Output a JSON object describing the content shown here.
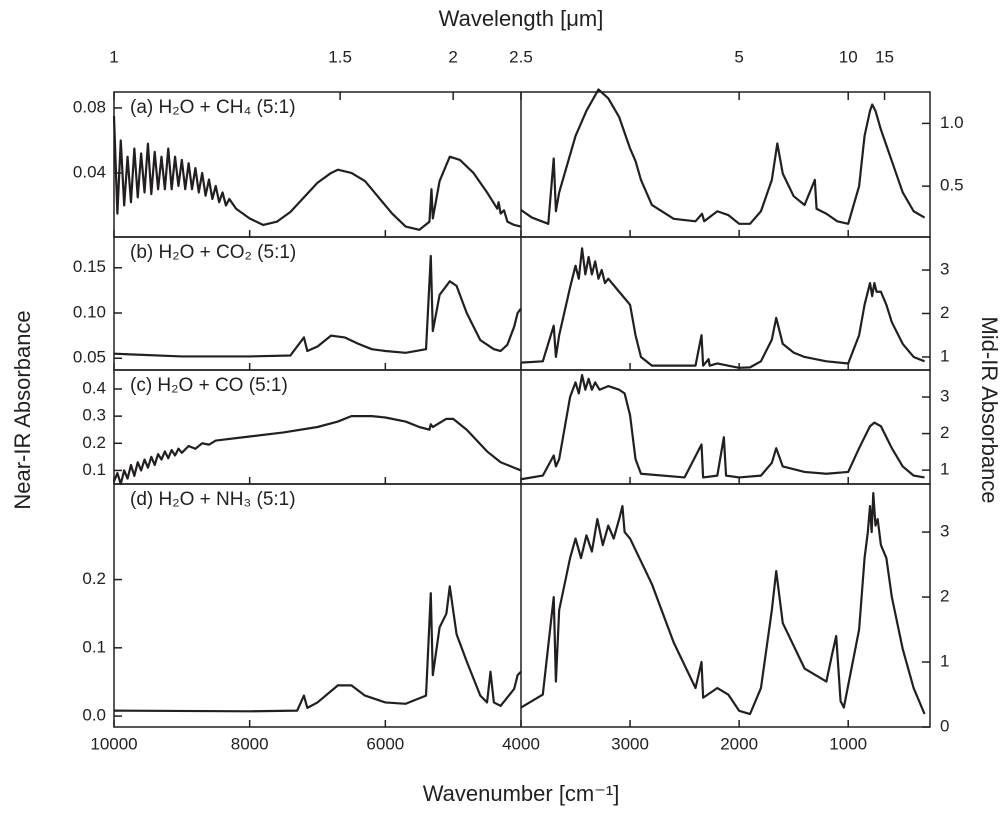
{
  "chart_data": {
    "type": "line",
    "top_x_label": "Wavelength [μm]",
    "x_label": "Wavenumber [cm⁻¹]",
    "left_y_label": "Near-IR Absorbance",
    "right_y_label": "Mid-IR Absorbance",
    "color": "#231f20",
    "near_xlim": [
      10000,
      4000
    ],
    "near_xticks": [
      10000,
      8000,
      6000,
      4000
    ],
    "mid_xlim": [
      4000,
      250
    ],
    "mid_xticks": [
      3000,
      2000,
      1000
    ],
    "top_xticks": [
      1,
      1.5,
      2,
      2.5,
      5,
      10,
      15
    ],
    "panels": [
      {
        "label": "(a) H₂O + CH₄ (5:1)",
        "near": {
          "ylim": [
            0.0006,
            0.0898
          ],
          "yticks": [
            0.04,
            0.08
          ],
          "x": [
            10000,
            9950,
            9900,
            9850,
            9800,
            9750,
            9700,
            9650,
            9600,
            9550,
            9500,
            9450,
            9400,
            9350,
            9300,
            9250,
            9200,
            9150,
            9100,
            9050,
            9000,
            8950,
            8900,
            8850,
            8800,
            8750,
            8700,
            8650,
            8600,
            8550,
            8500,
            8450,
            8400,
            8350,
            8300,
            8200,
            8000,
            7800,
            7600,
            7400,
            7200,
            7000,
            6800,
            6700,
            6500,
            6300,
            6100,
            5900,
            5700,
            5500,
            5350,
            5320,
            5300,
            5200,
            5050,
            4900,
            4700,
            4500,
            4350,
            4330,
            4300,
            4250,
            4200,
            4100,
            4000
          ],
          "values": [
            0.075,
            0.015,
            0.06,
            0.02,
            0.05,
            0.022,
            0.055,
            0.025,
            0.052,
            0.028,
            0.058,
            0.027,
            0.053,
            0.03,
            0.05,
            0.03,
            0.055,
            0.03,
            0.05,
            0.032,
            0.048,
            0.03,
            0.046,
            0.03,
            0.043,
            0.028,
            0.04,
            0.026,
            0.036,
            0.024,
            0.032,
            0.022,
            0.028,
            0.02,
            0.024,
            0.018,
            0.012,
            0.008,
            0.01,
            0.016,
            0.025,
            0.034,
            0.04,
            0.042,
            0.04,
            0.035,
            0.025,
            0.015,
            0.007,
            0.005,
            0.01,
            0.03,
            0.012,
            0.035,
            0.05,
            0.048,
            0.04,
            0.028,
            0.018,
            0.022,
            0.015,
            0.017,
            0.01,
            0.008,
            0.007
          ]
        },
        "mid": {
          "axis": "y2",
          "y2lim": [
            0.095,
            1.25
          ],
          "y2ticks": [
            {
              "value": 0.5,
              "label": "0.5"
            },
            {
              "value": 1,
              "label": "1.0"
            }
          ],
          "x": [
            4000,
            3900,
            3750,
            3700,
            3680,
            3650,
            3500,
            3400,
            3290,
            3200,
            3100,
            3000,
            2950,
            2900,
            2800,
            2600,
            2400,
            2340,
            2320,
            2200,
            2100,
            2000,
            1900,
            1800,
            1700,
            1650,
            1600,
            1500,
            1400,
            1306,
            1290,
            1200,
            1100,
            1000,
            900,
            850,
            800,
            780,
            750,
            700,
            600,
            500,
            400,
            300
          ],
          "values": [
            0.31,
            0.25,
            0.2,
            0.72,
            0.3,
            0.45,
            0.9,
            1.1,
            1.27,
            1.2,
            1.05,
            0.8,
            0.7,
            0.55,
            0.35,
            0.24,
            0.22,
            0.28,
            0.22,
            0.3,
            0.27,
            0.2,
            0.2,
            0.3,
            0.55,
            0.84,
            0.6,
            0.42,
            0.35,
            0.55,
            0.32,
            0.28,
            0.22,
            0.2,
            0.5,
            0.9,
            1.1,
            1.15,
            1.1,
            0.95,
            0.7,
            0.45,
            0.3,
            0.25
          ]
        }
      },
      {
        "label": "(b) H₂O + CO₂ (5:1)",
        "near": {
          "ylim": [
            0.037,
            0.184
          ],
          "yticks": [
            0.05,
            {
              "value": 0.1,
              "label": "0.10"
            },
            0.15
          ],
          "x": [
            10000,
            9000,
            8000,
            7400,
            7200,
            7150,
            7000,
            6800,
            6600,
            6400,
            6200,
            6000,
            5700,
            5400,
            5330,
            5300,
            5200,
            5050,
            4950,
            4800,
            4600,
            4400,
            4300,
            4200,
            4100,
            4050,
            4000
          ],
          "values": [
            0.055,
            0.052,
            0.052,
            0.053,
            0.073,
            0.058,
            0.063,
            0.075,
            0.073,
            0.066,
            0.06,
            0.058,
            0.056,
            0.06,
            0.163,
            0.08,
            0.12,
            0.135,
            0.13,
            0.1,
            0.07,
            0.06,
            0.058,
            0.065,
            0.085,
            0.1,
            0.105
          ]
        },
        "mid": {
          "axis": "y2",
          "y2lim": [
            0.7,
            3.76
          ],
          "y2ticks": [
            1,
            2,
            3
          ],
          "x": [
            4000,
            3800,
            3700,
            3680,
            3650,
            3550,
            3500,
            3470,
            3440,
            3410,
            3380,
            3350,
            3320,
            3290,
            3260,
            3230,
            3200,
            3100,
            3000,
            2950,
            2900,
            2800,
            2400,
            2345,
            2330,
            2280,
            2270,
            2200,
            2100,
            2000,
            1900,
            1800,
            1700,
            1660,
            1600,
            1500,
            1400,
            1200,
            1000,
            900,
            850,
            820,
            800,
            780,
            760,
            740,
            700,
            650,
            600,
            500,
            400,
            300
          ],
          "values": [
            0.87,
            0.9,
            1.72,
            1.0,
            1.5,
            2.6,
            3.1,
            2.8,
            3.5,
            2.9,
            3.3,
            2.9,
            3.2,
            2.8,
            3.0,
            2.7,
            2.8,
            2.5,
            2.2,
            1.5,
            1.0,
            0.8,
            0.8,
            1.5,
            0.8,
            0.95,
            0.8,
            0.85,
            0.8,
            0.75,
            0.76,
            0.9,
            1.4,
            1.9,
            1.3,
            1.1,
            1.0,
            0.9,
            0.85,
            1.5,
            2.2,
            2.5,
            2.7,
            2.4,
            2.7,
            2.5,
            2.5,
            2.2,
            1.8,
            1.3,
            1.0,
            0.9
          ]
        }
      },
      {
        "label": "(c) H₂O + CO (5:1)",
        "near": {
          "ylim": [
            0.05,
            0.47
          ],
          "yticks": [
            0.1,
            0.2,
            0.3,
            0.4
          ],
          "x": [
            10000,
            9950,
            9900,
            9850,
            9800,
            9750,
            9700,
            9650,
            9600,
            9550,
            9500,
            9450,
            9400,
            9350,
            9300,
            9250,
            9200,
            9150,
            9100,
            9050,
            9000,
            8900,
            8800,
            8700,
            8600,
            8500,
            8000,
            7500,
            7000,
            6700,
            6500,
            6200,
            6000,
            5700,
            5500,
            5350,
            5330,
            5300,
            5100,
            5000,
            4800,
            4500,
            4300,
            4100,
            4000
          ],
          "values": [
            0.06,
            0.09,
            0.05,
            0.1,
            0.07,
            0.12,
            0.08,
            0.13,
            0.1,
            0.14,
            0.11,
            0.15,
            0.12,
            0.16,
            0.14,
            0.17,
            0.145,
            0.175,
            0.155,
            0.18,
            0.165,
            0.19,
            0.18,
            0.2,
            0.195,
            0.21,
            0.225,
            0.24,
            0.26,
            0.28,
            0.3,
            0.3,
            0.295,
            0.28,
            0.26,
            0.25,
            0.27,
            0.26,
            0.29,
            0.29,
            0.25,
            0.17,
            0.13,
            0.11,
            0.1
          ]
        },
        "mid": {
          "axis": "y2",
          "y2lim": [
            0.62,
            3.74
          ],
          "y2ticks": [
            1,
            2,
            3
          ],
          "x": [
            4000,
            3800,
            3700,
            3680,
            3650,
            3550,
            3500,
            3470,
            3440,
            3410,
            3380,
            3350,
            3320,
            3280,
            3200,
            3100,
            3050,
            3000,
            2950,
            2900,
            2500,
            2345,
            2330,
            2200,
            2140,
            2120,
            2000,
            1800,
            1700,
            1660,
            1600,
            1400,
            1200,
            1000,
            900,
            800,
            760,
            700,
            600,
            500,
            400,
            300
          ],
          "values": [
            0.75,
            0.85,
            1.4,
            1.1,
            1.3,
            3.0,
            3.4,
            3.1,
            3.6,
            3.2,
            3.5,
            3.2,
            3.4,
            3.2,
            3.3,
            3.2,
            3.1,
            2.5,
            1.3,
            0.9,
            0.8,
            1.7,
            0.8,
            0.85,
            1.9,
            0.85,
            0.8,
            0.85,
            1.2,
            1.6,
            1.1,
            0.95,
            0.9,
            0.95,
            1.6,
            2.2,
            2.3,
            2.2,
            1.6,
            1.1,
            0.85,
            0.8
          ]
        }
      },
      {
        "label": "(d) H₂O + NH₃ (5:1)",
        "near": {
          "ylim": [
            -0.016,
            0.34
          ],
          "yticks": [
            {
              "value": 0,
              "label": "0.0"
            },
            0.1,
            0.2
          ],
          "x": [
            10000,
            8000,
            7300,
            7200,
            7150,
            7000,
            6700,
            6500,
            6300,
            6000,
            5700,
            5400,
            5330,
            5300,
            5200,
            5100,
            5050,
            4950,
            4800,
            4600,
            4500,
            4450,
            4400,
            4300,
            4100,
            4050,
            4000
          ],
          "values": [
            0.008,
            0.007,
            0.008,
            0.03,
            0.012,
            0.02,
            0.045,
            0.045,
            0.03,
            0.02,
            0.018,
            0.03,
            0.18,
            0.06,
            0.13,
            0.15,
            0.19,
            0.12,
            0.08,
            0.03,
            0.02,
            0.065,
            0.02,
            0.015,
            0.04,
            0.06,
            0.065
          ]
        },
        "mid": {
          "axis": "y2",
          "y2lim": [
            0,
            3.74
          ],
          "y2ticks": [
            0,
            1,
            2,
            3
          ],
          "x": [
            4000,
            3800,
            3700,
            3680,
            3650,
            3550,
            3500,
            3450,
            3400,
            3350,
            3300,
            3250,
            3200,
            3150,
            3100,
            3070,
            3050,
            3000,
            2800,
            2600,
            2400,
            2345,
            2330,
            2200,
            2100,
            2000,
            1900,
            1800,
            1700,
            1660,
            1600,
            1400,
            1200,
            1150,
            1110,
            1070,
            1040,
            900,
            850,
            820,
            800,
            785,
            770,
            750,
            730,
            700,
            650,
            600,
            500,
            400,
            300
          ],
          "values": [
            0.3,
            0.5,
            2.0,
            0.7,
            1.8,
            2.6,
            2.9,
            2.6,
            2.95,
            2.7,
            3.2,
            2.8,
            3.1,
            2.9,
            3.2,
            3.4,
            3.0,
            2.9,
            2.2,
            1.3,
            0.6,
            1.0,
            0.45,
            0.6,
            0.5,
            0.25,
            0.2,
            0.6,
            1.8,
            2.4,
            1.6,
            0.9,
            0.7,
            1.1,
            1.4,
            0.4,
            0.3,
            1.5,
            2.6,
            3.0,
            3.4,
            3.0,
            3.6,
            3.1,
            3.2,
            2.8,
            2.6,
            2.0,
            1.2,
            0.6,
            0.2
          ]
        }
      }
    ]
  }
}
